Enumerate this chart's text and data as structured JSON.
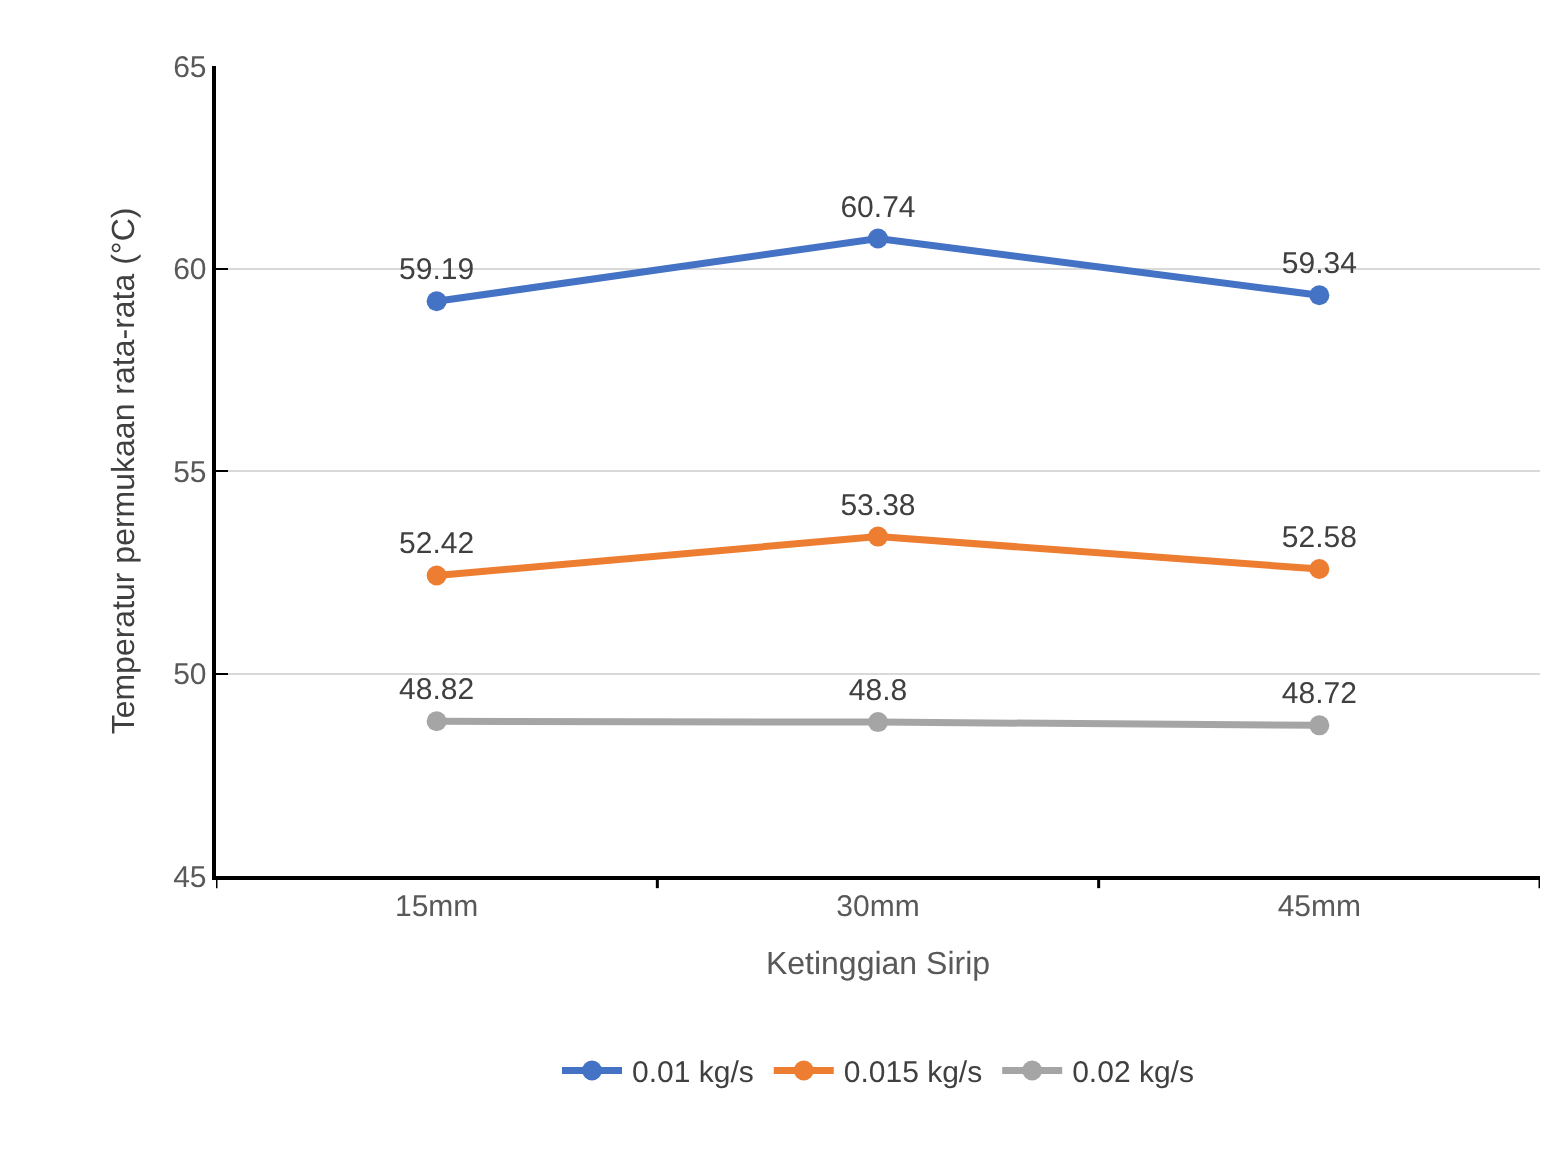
{
  "chart_data": {
    "type": "line",
    "xlabel": "Ketinggian Sirip",
    "ylabel": "Temperatur permukaan rata-rata (°C)",
    "categories": [
      "15mm",
      "30mm",
      "45mm"
    ],
    "series": [
      {
        "name": "0.01 kg/s",
        "color": "#4472c4",
        "values": [
          59.19,
          60.74,
          59.34
        ]
      },
      {
        "name": "0.015 kg/s",
        "color": "#ed7d31",
        "values": [
          52.42,
          53.38,
          52.58
        ]
      },
      {
        "name": "0.02 kg/s",
        "color": "#a5a5a5",
        "values": [
          48.82,
          48.8,
          48.72
        ]
      }
    ],
    "ylim": [
      45,
      65
    ],
    "yticks": [
      45,
      50,
      55,
      60,
      65
    ],
    "grid": "y",
    "legend": "bottom",
    "marker": "circle",
    "line_style": "solid",
    "data_labels": true
  }
}
